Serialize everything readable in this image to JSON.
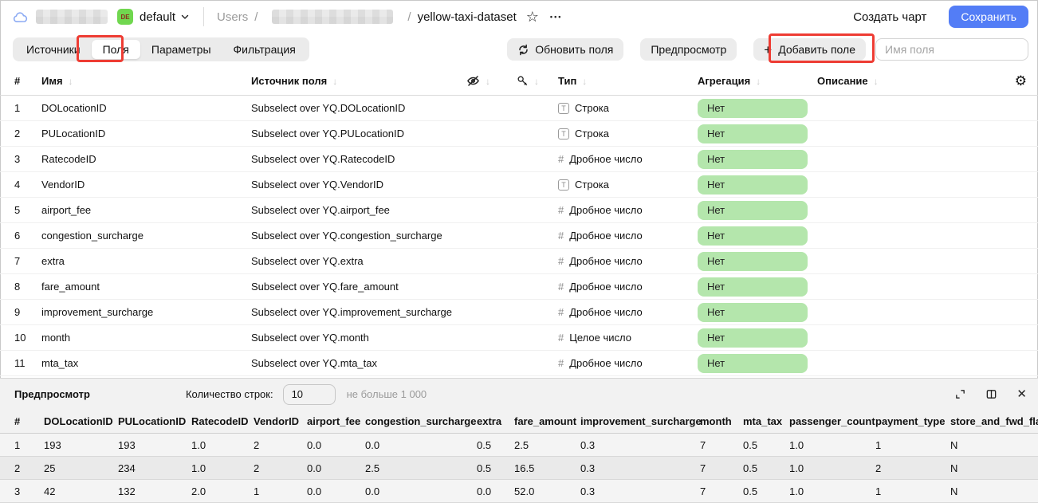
{
  "colors": {
    "accent_blue": "#537df6",
    "annotation_red": "#ee3c33",
    "aggregation_badge_green": "#b4e6ac",
    "env_badge_green": "#70d74f",
    "panel_gray": "#f2f2f2"
  },
  "icons": {
    "sort": "↓",
    "star": "☆",
    "ellipsis": "•••",
    "gear": "⚙",
    "close": "✕",
    "plus": "+"
  },
  "header": {
    "env_badge": "DE",
    "tenant_name": "default",
    "breadcrumb_root": "Users",
    "breadcrumb_sep": "/",
    "breadcrumb_current": "yellow-taxi-dataset",
    "create_chart_label": "Создать чарт",
    "save_label": "Сохранить"
  },
  "toolbar": {
    "tabs": [
      {
        "label": "Источники",
        "active": false
      },
      {
        "label": "Поля",
        "active": true
      },
      {
        "label": "Параметры",
        "active": false
      },
      {
        "label": "Фильтрация",
        "active": false
      }
    ],
    "update_fields_label": "Обновить поля",
    "preview_label": "Предпросмотр",
    "add_field_label": "Добавить поле",
    "field_search_placeholder": "Имя поля"
  },
  "fields_table": {
    "headers": {
      "index": "#",
      "name": "Имя",
      "source": "Источник поля",
      "type": "Тип",
      "aggregation": "Агрегация",
      "description": "Описание"
    },
    "rows": [
      {
        "i": "1",
        "name": "DOLocationID",
        "source": "Subselect over YQ.DOLocationID",
        "type": "Строка",
        "kind": "string",
        "agg": "Нет"
      },
      {
        "i": "2",
        "name": "PULocationID",
        "source": "Subselect over YQ.PULocationID",
        "type": "Строка",
        "kind": "string",
        "agg": "Нет"
      },
      {
        "i": "3",
        "name": "RatecodeID",
        "source": "Subselect over YQ.RatecodeID",
        "type": "Дробное число",
        "kind": "float",
        "agg": "Нет"
      },
      {
        "i": "4",
        "name": "VendorID",
        "source": "Subselect over YQ.VendorID",
        "type": "Строка",
        "kind": "string",
        "agg": "Нет"
      },
      {
        "i": "5",
        "name": "airport_fee",
        "source": "Subselect over YQ.airport_fee",
        "type": "Дробное число",
        "kind": "float",
        "agg": "Нет"
      },
      {
        "i": "6",
        "name": "congestion_surcharge",
        "source": "Subselect over YQ.congestion_surcharge",
        "type": "Дробное число",
        "kind": "float",
        "agg": "Нет"
      },
      {
        "i": "7",
        "name": "extra",
        "source": "Subselect over YQ.extra",
        "type": "Дробное число",
        "kind": "float",
        "agg": "Нет"
      },
      {
        "i": "8",
        "name": "fare_amount",
        "source": "Subselect over YQ.fare_amount",
        "type": "Дробное число",
        "kind": "float",
        "agg": "Нет"
      },
      {
        "i": "9",
        "name": "improvement_surcharge",
        "source": "Subselect over YQ.improvement_surcharge",
        "type": "Дробное число",
        "kind": "float",
        "agg": "Нет"
      },
      {
        "i": "10",
        "name": "month",
        "source": "Subselect over YQ.month",
        "type": "Целое число",
        "kind": "int",
        "agg": "Нет"
      },
      {
        "i": "11",
        "name": "mta_tax",
        "source": "Subselect over YQ.mta_tax",
        "type": "Дробное число",
        "kind": "float",
        "agg": "Нет"
      }
    ]
  },
  "preview": {
    "title": "Предпросмотр",
    "rows_count_label": "Количество строк:",
    "rows_count_value": "10",
    "rows_count_hint": "не больше 1 000",
    "columns": [
      "#",
      "DOLocationID",
      "PULocationID",
      "RatecodeID",
      "VendorID",
      "airport_fee",
      "congestion_surcharge",
      "extra",
      "fare_amount",
      "improvement_surcharge",
      "month",
      "mta_tax",
      "passenger_count",
      "payment_type",
      "store_and_fwd_flag"
    ],
    "rows": [
      [
        "1",
        "193",
        "193",
        "1.0",
        "2",
        "0.0",
        "0.0",
        "0.5",
        "2.5",
        "0.3",
        "7",
        "0.5",
        "1.0",
        "1",
        "N"
      ],
      [
        "2",
        "25",
        "234",
        "1.0",
        "2",
        "0.0",
        "2.5",
        "0.5",
        "16.5",
        "0.3",
        "7",
        "0.5",
        "1.0",
        "2",
        "N"
      ],
      [
        "3",
        "42",
        "132",
        "2.0",
        "1",
        "0.0",
        "0.0",
        "0.0",
        "52.0",
        "0.3",
        "7",
        "0.5",
        "1.0",
        "1",
        "N"
      ]
    ]
  }
}
